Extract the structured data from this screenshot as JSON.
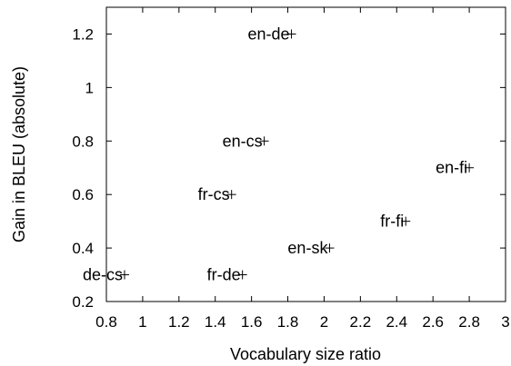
{
  "chart_data": {
    "type": "scatter",
    "xlabel": "Vocabulary size ratio",
    "ylabel": "Gain in BLEU (absolute)",
    "xlim": [
      0.8,
      3.0
    ],
    "ylim": [
      0.2,
      1.3
    ],
    "xticks": [
      "0.8",
      "1",
      "1.2",
      "1.4",
      "1.6",
      "1.8",
      "2",
      "2.2",
      "2.4",
      "2.6",
      "2.8",
      "3"
    ],
    "yticks": [
      "0.2",
      "0.4",
      "0.6",
      "0.8",
      "1",
      "1.2"
    ],
    "grid": false,
    "marker": "+",
    "points": [
      {
        "label": "en-de",
        "x": 1.82,
        "y": 1.2
      },
      {
        "label": "en-cs",
        "x": 1.67,
        "y": 0.8
      },
      {
        "label": "fr-cs",
        "x": 1.49,
        "y": 0.6
      },
      {
        "label": "en-fi",
        "x": 2.8,
        "y": 0.7
      },
      {
        "label": "fr-fi",
        "x": 2.45,
        "y": 0.5
      },
      {
        "label": "en-sk",
        "x": 2.03,
        "y": 0.4
      },
      {
        "label": "de-cs",
        "x": 0.9,
        "y": 0.3
      },
      {
        "label": "fr-de",
        "x": 1.55,
        "y": 0.3
      }
    ]
  }
}
